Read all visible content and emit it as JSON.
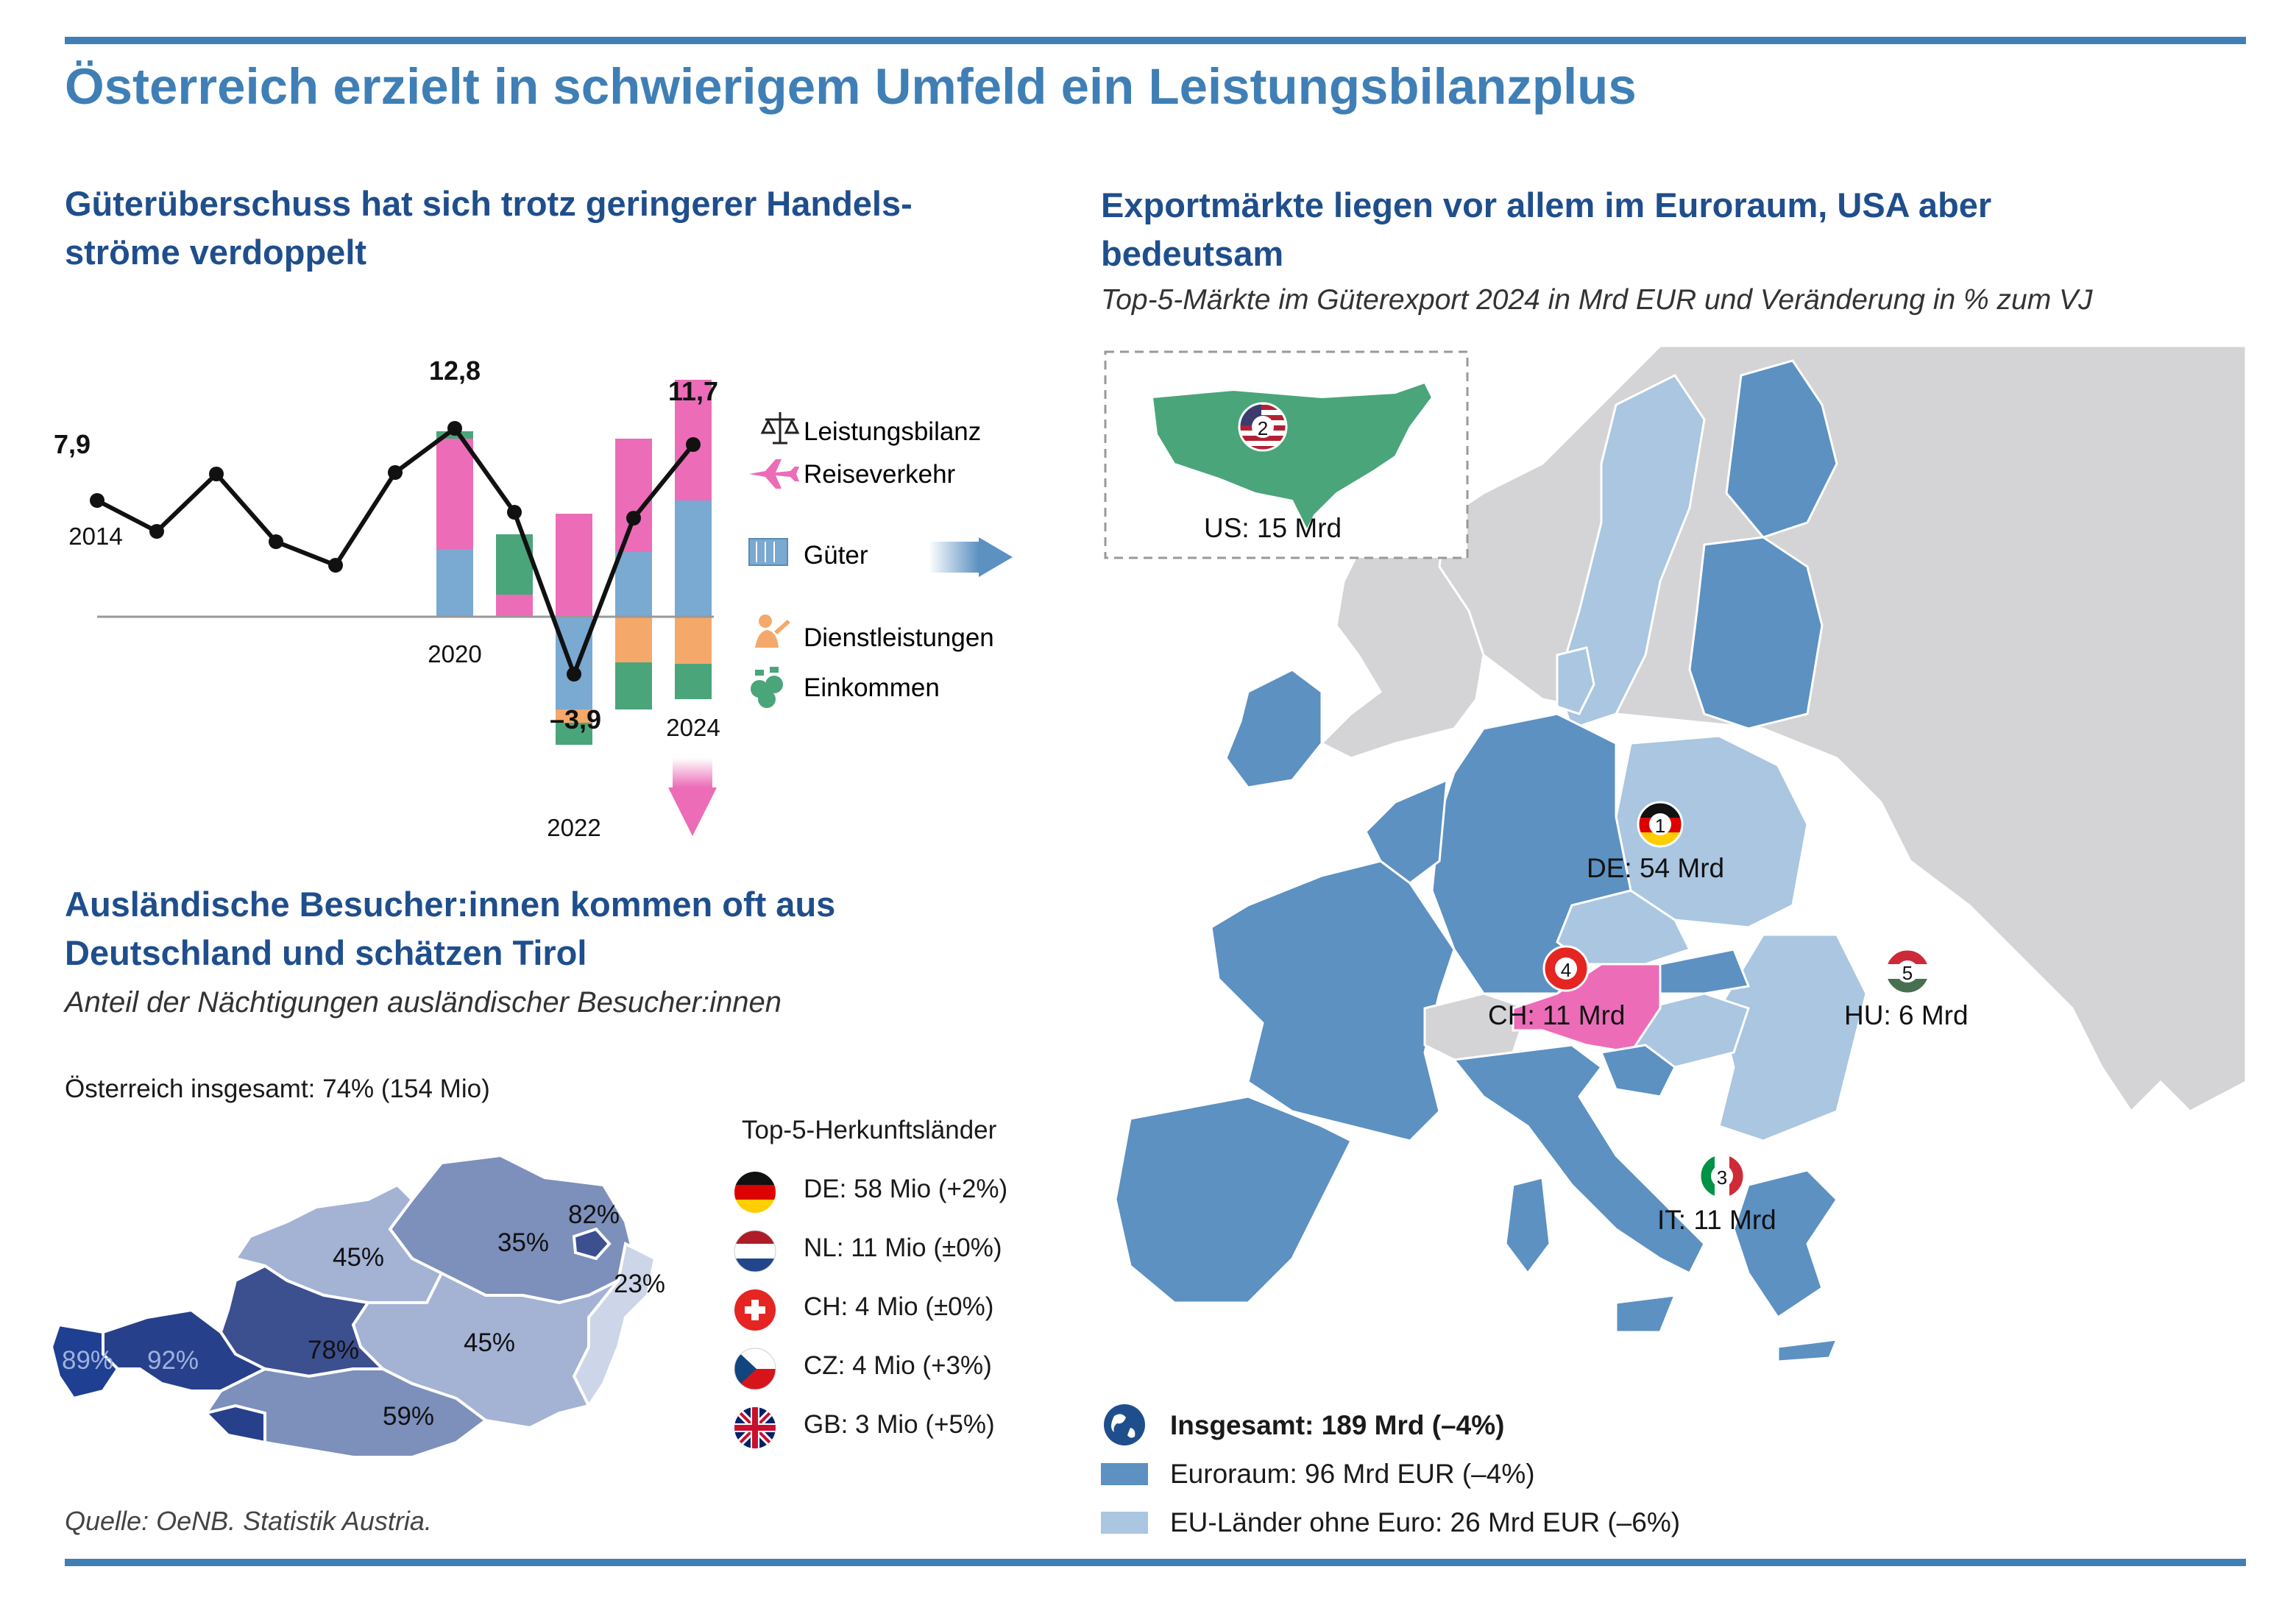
{
  "main_title": "Österreich erzielt in schwierigem Umfeld ein Leistungsbilanzplus",
  "colors": {
    "accent": "#3f7fb6",
    "title_blue": "#1f4e8c",
    "travel": "#ec6cb8",
    "goods": "#7aa9d1",
    "services": "#f4a86a",
    "income": "#4aa57a",
    "euro_area": "#5c91c2",
    "eu_non_euro": "#aac6e0",
    "other_land": "#d4d4d6",
    "austria": "#ec6cb8"
  },
  "chart_section": {
    "title": "Güterüberschuss hat sich trotz geringerer Handels-ströme verdoppelt",
    "title_line1": "Güterüberschuss hat sich trotz geringerer Handels-",
    "title_line2": "ströme verdoppelt",
    "legend": [
      {
        "label": "Leistungsbilanz",
        "icon": "scale-icon"
      },
      {
        "label": "Reiseverkehr",
        "icon": "airplane-icon"
      },
      {
        "label": "Güter",
        "icon": "container-icon"
      },
      {
        "label": "Dienstleistungen",
        "icon": "worker-icon"
      },
      {
        "label": "Einkommen",
        "icon": "money-bags-icon"
      }
    ],
    "annotations": {
      "v2014": "7,9",
      "v2020": "12,8",
      "v2022": "–3,9",
      "v2024": "11,7"
    },
    "x_labels": {
      "y2014": "2014",
      "y2020": "2020",
      "y2022": "2022",
      "y2024": "2024"
    }
  },
  "chart_data": {
    "type": "line",
    "title": "Güterüberschuss hat sich trotz geringerer Handels-ströme verdoppelt",
    "x": [
      2014,
      2015,
      2016,
      2017,
      2018,
      2019,
      2020,
      2021,
      2022,
      2023,
      2024
    ],
    "series": [
      {
        "name": "Leistungsbilanz",
        "values": [
          7.9,
          5.8,
          9.7,
          5.1,
          3.5,
          9.8,
          12.8,
          7.1,
          -3.9,
          6.7,
          11.7
        ]
      }
    ],
    "stacked_components": {
      "type": "bar",
      "years": [
        2020,
        2021,
        2022,
        2023,
        2024
      ],
      "series": [
        {
          "name": "Reiseverkehr",
          "values": [
            7.5,
            1.5,
            7.0,
            7.7,
            8.2
          ]
        },
        {
          "name": "Güter",
          "values": [
            4.6,
            0.0,
            -6.3,
            4.4,
            7.9
          ]
        },
        {
          "name": "Dienstleistungen",
          "values": [
            0.0,
            0.0,
            -0.9,
            -3.1,
            -3.2
          ]
        },
        {
          "name": "Einkommen",
          "values": [
            0.5,
            4.1,
            -1.5,
            -3.2,
            -2.4
          ]
        }
      ]
    },
    "ylim": [
      -12,
      18
    ]
  },
  "visitors": {
    "title_line1": "Ausländische Besucher:innen kommen oft aus",
    "title_line2": "Deutschland und schätzen Tirol",
    "subtitle": "Anteil der Nächtigungen ausländischer Besucher:innen",
    "total": "Österreich insgesamt: 74% (154 Mio)",
    "top5_title": "Top-5-Herkunftsländer",
    "top5": [
      {
        "code": "de",
        "label": "DE: 58 Mio (+2%)"
      },
      {
        "code": "nl",
        "label": "NL: 11 Mio (±0%)"
      },
      {
        "code": "ch",
        "label": "CH: 4 Mio (±0%)"
      },
      {
        "code": "cz",
        "label": "CZ: 4 Mio (+3%)"
      },
      {
        "code": "gb",
        "label": "GB: 3 Mio (+5%)"
      }
    ],
    "states": [
      {
        "name": "Vorarlberg",
        "pct": "89%"
      },
      {
        "name": "Tirol",
        "pct": "92%"
      },
      {
        "name": "Salzburg",
        "pct": "78%"
      },
      {
        "name": "Kärnten",
        "pct": "59%"
      },
      {
        "name": "Oberösterreich",
        "pct": "45%"
      },
      {
        "name": "Niederösterreich",
        "pct": "35%"
      },
      {
        "name": "Wien",
        "pct": "82%"
      },
      {
        "name": "Burgenland",
        "pct": "23%"
      },
      {
        "name": "Steiermark",
        "pct": "45%"
      }
    ]
  },
  "exports": {
    "title_line1": "Exportmärkte liegen vor allem im Euroraum, USA aber",
    "title_line2": "bedeutsam",
    "subtitle": "Top-5-Märkte im Güterexport 2024 in Mrd EUR und Veränderung in % zum VJ",
    "markers": [
      {
        "rank": "1",
        "label": "DE: 54 Mrd"
      },
      {
        "rank": "2",
        "label": "US: 15 Mrd"
      },
      {
        "rank": "3",
        "label": "IT: 11 Mrd"
      },
      {
        "rank": "4",
        "label": "CH: 11 Mrd"
      },
      {
        "rank": "5",
        "label": "HU: 6 Mrd"
      }
    ],
    "legend_total": "Insgesamt: 189 Mrd (–4%)",
    "legend_euro": "Euroraum: 96 Mrd EUR (–4%)",
    "legend_eu": "EU-Länder ohne Euro: 26 Mrd EUR (–6%)"
  },
  "source": "Quelle: OeNB. Statistik Austria."
}
